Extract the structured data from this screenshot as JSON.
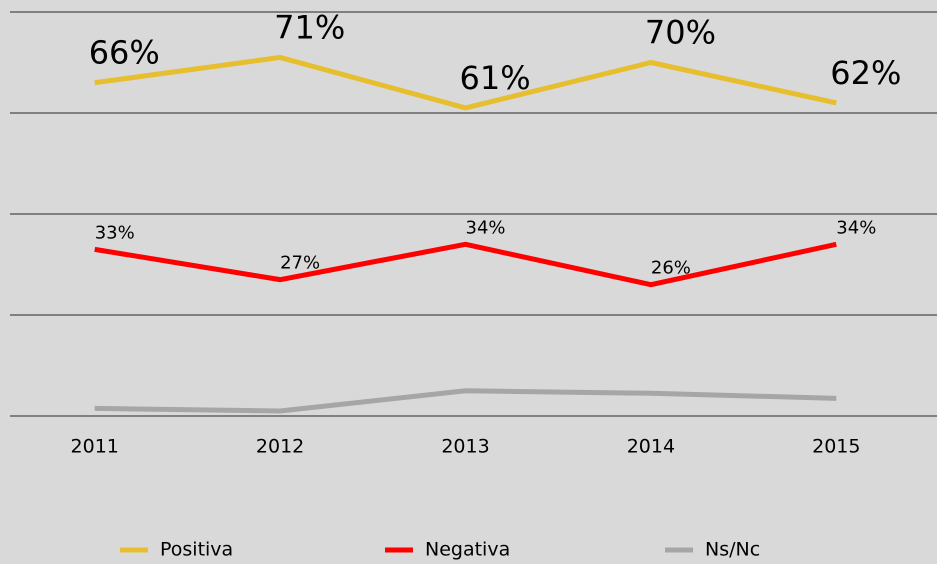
{
  "chart_data": {
    "type": "line",
    "categories": [
      "2011",
      "2012",
      "2013",
      "2014",
      "2015"
    ],
    "series": [
      {
        "name": "Positiva",
        "color": "#e6be2e",
        "values": [
          66,
          71,
          61,
          70,
          62
        ],
        "value_labels": [
          "66%",
          "71%",
          "61%",
          "70%",
          "62%"
        ]
      },
      {
        "name": "Negativa",
        "color": "#ff0000",
        "values": [
          33,
          27,
          34,
          26,
          34
        ],
        "value_labels": [
          "33%",
          "27%",
          "34%",
          "26%",
          "34%"
        ]
      },
      {
        "name": "Ns/Nc",
        "color": "#a6a6a6",
        "values": [
          1.5,
          1,
          5,
          4.5,
          3.5
        ]
      }
    ],
    "ylim": [
      0,
      80
    ],
    "yticks": [
      0,
      20,
      40,
      60,
      80
    ],
    "grid": true,
    "legend": "bottom"
  }
}
